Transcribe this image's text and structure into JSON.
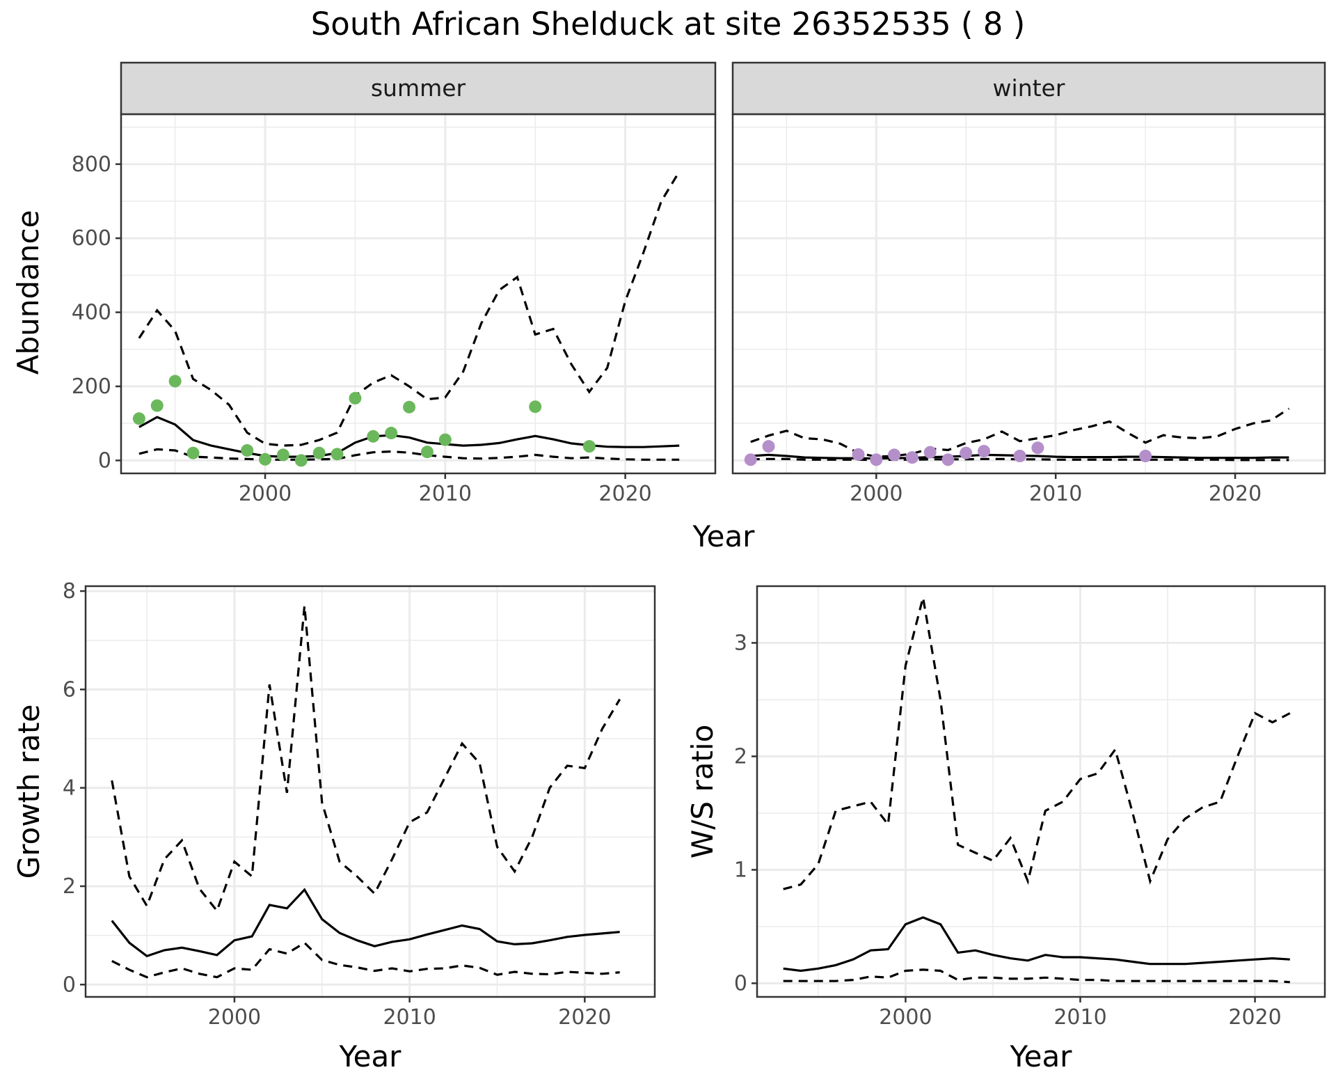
{
  "figure": {
    "title": "South African Shelduck at site 26352535 ( 8 )",
    "summer_color": "#6bb85c",
    "winter_color": "#b48fc9"
  },
  "chart_data": [
    {
      "id": "abundance_summer",
      "type": "line",
      "strip_label": "summer",
      "ylabel": "Abundance",
      "xlabel": "Year",
      "xlim": [
        1992,
        2025
      ],
      "ylim": [
        -35,
        935
      ],
      "x_ticks": [
        2000,
        2010,
        2020
      ],
      "y_ticks": [
        0,
        200,
        400,
        600,
        800
      ],
      "grid": true,
      "series": [
        {
          "role": "estimate",
          "x": [
            1993,
            1994,
            1995,
            1996,
            1997,
            1998,
            1999,
            2000,
            2001,
            2002,
            2003,
            2004,
            2005,
            2006,
            2007,
            2008,
            2009,
            2010,
            2011,
            2012,
            2013,
            2014,
            2015,
            2016,
            2017,
            2018,
            2019,
            2020,
            2021,
            2022,
            2023
          ],
          "values": [
            90,
            117,
            97,
            55,
            40,
            30,
            20,
            12,
            10,
            10,
            12,
            20,
            48,
            65,
            68,
            62,
            48,
            44,
            40,
            42,
            47,
            57,
            66,
            57,
            46,
            41,
            37,
            36,
            36,
            38,
            40
          ]
        },
        {
          "role": "upper",
          "x": [
            1993,
            1994,
            1995,
            1996,
            1997,
            1998,
            1999,
            2000,
            2001,
            2002,
            2003,
            2004,
            2005,
            2006,
            2007,
            2008,
            2009,
            2010,
            2011,
            2012,
            2013,
            2014,
            2015,
            2016,
            2017,
            2018,
            2019,
            2020,
            2021,
            2022,
            2023
          ],
          "values": [
            330,
            405,
            350,
            220,
            190,
            150,
            75,
            45,
            40,
            42,
            55,
            75,
            175,
            210,
            230,
            200,
            165,
            170,
            240,
            370,
            460,
            495,
            340,
            355,
            260,
            185,
            250,
            430,
            560,
            700,
            780
          ]
        },
        {
          "role": "lower",
          "x": [
            1993,
            1994,
            1995,
            1996,
            1997,
            1998,
            1999,
            2000,
            2001,
            2002,
            2003,
            2004,
            2005,
            2006,
            2007,
            2008,
            2009,
            2010,
            2011,
            2012,
            2013,
            2014,
            2015,
            2016,
            2017,
            2018,
            2019,
            2020,
            2021,
            2022,
            2023
          ],
          "values": [
            18,
            30,
            27,
            10,
            8,
            5,
            4,
            2,
            2,
            2,
            3,
            4,
            14,
            22,
            24,
            21,
            14,
            10,
            6,
            5,
            7,
            10,
            15,
            10,
            6,
            8,
            5,
            3,
            2,
            2,
            2
          ]
        },
        {
          "role": "observed",
          "x": [
            1993,
            1994,
            1995,
            1996,
            1999,
            2000,
            2001,
            2002,
            2003,
            2004,
            2005,
            2006,
            2007,
            2008,
            2009,
            2010,
            2015,
            2018
          ],
          "values": [
            113,
            148,
            214,
            20,
            27,
            3,
            15,
            0,
            20,
            17,
            168,
            65,
            74,
            144,
            23,
            56,
            145,
            38
          ]
        }
      ]
    },
    {
      "id": "abundance_winter",
      "type": "line",
      "strip_label": "winter",
      "xlabel": "Year",
      "xlim": [
        1992,
        2025
      ],
      "ylim": [
        -35,
        935
      ],
      "x_ticks": [
        2000,
        2010,
        2020
      ],
      "grid": true,
      "series": [
        {
          "role": "estimate",
          "x": [
            1993,
            1994,
            1995,
            1996,
            1997,
            1998,
            1999,
            2000,
            2001,
            2002,
            2003,
            2004,
            2005,
            2006,
            2007,
            2008,
            2009,
            2010,
            2011,
            2012,
            2013,
            2014,
            2015,
            2016,
            2017,
            2018,
            2019,
            2020,
            2021,
            2022,
            2023
          ],
          "values": [
            12,
            15,
            12,
            8,
            7,
            6,
            6,
            5,
            6,
            7,
            9,
            10,
            12,
            15,
            14,
            13,
            12,
            10,
            9,
            9,
            9,
            10,
            10,
            9,
            8,
            7,
            7,
            7,
            7,
            8,
            8
          ]
        },
        {
          "role": "upper",
          "x": [
            1993,
            1994,
            1995,
            1996,
            1997,
            1998,
            1999,
            2000,
            2001,
            2002,
            2003,
            2004,
            2005,
            2006,
            2007,
            2008,
            2009,
            2010,
            2011,
            2012,
            2013,
            2014,
            2015,
            2016,
            2017,
            2018,
            2019,
            2020,
            2021,
            2022,
            2023
          ],
          "values": [
            50,
            67,
            80,
            60,
            57,
            45,
            20,
            10,
            12,
            18,
            32,
            28,
            47,
            57,
            78,
            52,
            60,
            68,
            82,
            92,
            105,
            75,
            48,
            68,
            62,
            60,
            65,
            85,
            100,
            108,
            140
          ]
        },
        {
          "role": "lower",
          "x": [
            1993,
            1994,
            1995,
            1996,
            1997,
            1998,
            1999,
            2000,
            2001,
            2002,
            2003,
            2004,
            2005,
            2006,
            2007,
            2008,
            2009,
            2010,
            2011,
            2012,
            2013,
            2014,
            2015,
            2016,
            2017,
            2018,
            2019,
            2020,
            2021,
            2022,
            2023
          ],
          "values": [
            3,
            4,
            4,
            2,
            2,
            2,
            2,
            1,
            2,
            2,
            3,
            3,
            3,
            4,
            4,
            3,
            3,
            2,
            2,
            2,
            2,
            2,
            2,
            2,
            2,
            2,
            2,
            1,
            1,
            1,
            1
          ]
        },
        {
          "role": "observed",
          "x": [
            1993,
            1994,
            1999,
            2000,
            2001,
            2002,
            2003,
            2004,
            2005,
            2006,
            2008,
            2009,
            2015
          ],
          "values": [
            2,
            38,
            16,
            2,
            15,
            8,
            22,
            2,
            20,
            25,
            12,
            34,
            12
          ]
        }
      ]
    },
    {
      "id": "growth_rate",
      "type": "line",
      "ylabel": "Growth rate",
      "xlabel": "Year",
      "xlim": [
        1991.5,
        2024
      ],
      "ylim": [
        -0.25,
        8.1
      ],
      "x_ticks": [
        2000,
        2010,
        2020
      ],
      "y_ticks": [
        0,
        2,
        4,
        6,
        8
      ],
      "grid": true,
      "series": [
        {
          "role": "estimate",
          "x": [
            1993,
            1994,
            1995,
            1996,
            1997,
            1998,
            1999,
            2000,
            2001,
            2002,
            2003,
            2004,
            2005,
            2006,
            2007,
            2008,
            2009,
            2010,
            2011,
            2012,
            2013,
            2014,
            2015,
            2016,
            2017,
            2018,
            2019,
            2020,
            2021,
            2022
          ],
          "values": [
            1.3,
            0.85,
            0.58,
            0.7,
            0.75,
            0.68,
            0.6,
            0.9,
            0.98,
            1.62,
            1.55,
            1.93,
            1.33,
            1.05,
            0.9,
            0.78,
            0.87,
            0.92,
            1.02,
            1.11,
            1.2,
            1.13,
            0.88,
            0.82,
            0.84,
            0.9,
            0.97,
            1.01,
            1.04,
            1.07
          ]
        },
        {
          "role": "upper",
          "x": [
            1993,
            1994,
            1995,
            1996,
            1997,
            1998,
            1999,
            2000,
            2001,
            2002,
            2003,
            2004,
            2005,
            2006,
            2007,
            2008,
            2009,
            2010,
            2011,
            2012,
            2013,
            2014,
            2015,
            2016,
            2017,
            2018,
            2019,
            2020,
            2021,
            2022
          ],
          "values": [
            4.15,
            2.2,
            1.6,
            2.55,
            2.93,
            1.95,
            1.5,
            2.5,
            2.2,
            6.1,
            3.9,
            7.7,
            3.7,
            2.5,
            2.2,
            1.85,
            2.55,
            3.3,
            3.5,
            4.2,
            4.9,
            4.5,
            2.8,
            2.3,
            3,
            4,
            4.45,
            4.4,
            5.2,
            5.8
          ]
        },
        {
          "role": "lower",
          "x": [
            1993,
            1994,
            1995,
            1996,
            1997,
            1998,
            1999,
            2000,
            2001,
            2002,
            2003,
            2004,
            2005,
            2006,
            2007,
            2008,
            2009,
            2010,
            2011,
            2012,
            2013,
            2014,
            2015,
            2016,
            2017,
            2018,
            2019,
            2020,
            2021,
            2022
          ],
          "values": [
            0.48,
            0.3,
            0.15,
            0.25,
            0.33,
            0.22,
            0.15,
            0.33,
            0.3,
            0.72,
            0.63,
            0.85,
            0.5,
            0.4,
            0.35,
            0.28,
            0.33,
            0.27,
            0.32,
            0.33,
            0.39,
            0.34,
            0.2,
            0.26,
            0.22,
            0.21,
            0.26,
            0.24,
            0.22,
            0.25
          ]
        }
      ]
    },
    {
      "id": "ws_ratio",
      "type": "line",
      "ylabel": "W/S ratio",
      "xlabel": "Year",
      "xlim": [
        1991.5,
        2024
      ],
      "ylim": [
        -0.12,
        3.5
      ],
      "x_ticks": [
        2000,
        2010,
        2020
      ],
      "y_ticks": [
        0,
        1,
        2,
        3
      ],
      "grid": true,
      "series": [
        {
          "role": "estimate",
          "x": [
            1993,
            1994,
            1995,
            1996,
            1997,
            1998,
            1999,
            2000,
            2001,
            2002,
            2003,
            2004,
            2005,
            2006,
            2007,
            2008,
            2009,
            2010,
            2011,
            2012,
            2013,
            2014,
            2015,
            2016,
            2017,
            2018,
            2019,
            2020,
            2021,
            2022
          ],
          "values": [
            0.13,
            0.11,
            0.13,
            0.16,
            0.21,
            0.29,
            0.3,
            0.52,
            0.58,
            0.52,
            0.27,
            0.29,
            0.25,
            0.22,
            0.2,
            0.25,
            0.23,
            0.23,
            0.22,
            0.21,
            0.19,
            0.17,
            0.17,
            0.17,
            0.18,
            0.19,
            0.2,
            0.21,
            0.22,
            0.21
          ]
        },
        {
          "role": "upper",
          "x": [
            1993,
            1994,
            1995,
            1996,
            1997,
            1998,
            1999,
            2000,
            2001,
            2002,
            2003,
            2004,
            2005,
            2006,
            2007,
            2008,
            2009,
            2010,
            2011,
            2012,
            2013,
            2014,
            2015,
            2016,
            2017,
            2018,
            2019,
            2020,
            2021,
            2022
          ],
          "values": [
            0.83,
            0.87,
            1.05,
            1.52,
            1.56,
            1.6,
            1.4,
            2.8,
            3.4,
            2.5,
            1.22,
            1.15,
            1.08,
            1.28,
            0.9,
            1.52,
            1.6,
            1.8,
            1.85,
            2.06,
            1.5,
            0.9,
            1.27,
            1.45,
            1.55,
            1.6,
            2,
            2.38,
            2.3,
            2.38
          ]
        },
        {
          "role": "lower",
          "x": [
            1993,
            1994,
            1995,
            1996,
            1997,
            1998,
            1999,
            2000,
            2001,
            2002,
            2003,
            2004,
            2005,
            2006,
            2007,
            2008,
            2009,
            2010,
            2011,
            2012,
            2013,
            2014,
            2015,
            2016,
            2017,
            2018,
            2019,
            2020,
            2021,
            2022
          ],
          "values": [
            0.02,
            0.02,
            0.02,
            0.02,
            0.03,
            0.06,
            0.05,
            0.11,
            0.12,
            0.11,
            0.03,
            0.05,
            0.05,
            0.04,
            0.04,
            0.05,
            0.04,
            0.03,
            0.03,
            0.02,
            0.02,
            0.02,
            0.02,
            0.02,
            0.02,
            0.02,
            0.02,
            0.02,
            0.02,
            0.01
          ]
        }
      ]
    }
  ]
}
